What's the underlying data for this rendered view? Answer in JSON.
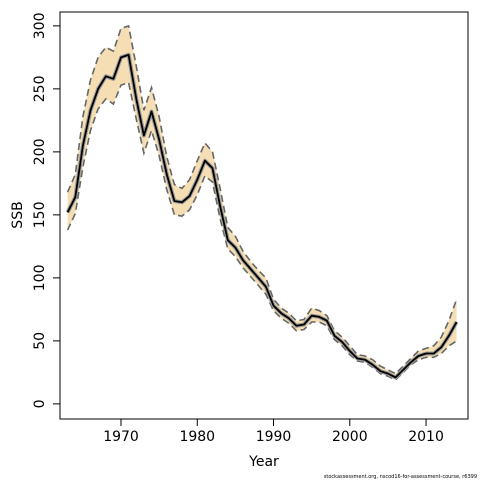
{
  "chart_data": {
    "type": "area",
    "xlabel": "Year",
    "ylabel": "SSB",
    "xlim": [
      1962,
      2015.5
    ],
    "ylim": [
      -12,
      311
    ],
    "x_ticks": [
      1970,
      1980,
      1990,
      2000,
      2010
    ],
    "y_ticks": [
      0,
      50,
      100,
      150,
      200,
      250,
      300
    ],
    "grid": false,
    "legend": "none",
    "caption": "stockassessment.org, nscod16-for-assessment-course, r6399",
    "colors": {
      "band": "#f5deb3",
      "estimate": "#000000",
      "bounds": "#666666"
    },
    "x": [
      1963,
      1964,
      1965,
      1966,
      1967,
      1968,
      1969,
      1970,
      1971,
      1972,
      1973,
      1974,
      1975,
      1976,
      1977,
      1978,
      1979,
      1980,
      1981,
      1982,
      1983,
      1984,
      1985,
      1986,
      1987,
      1988,
      1989,
      1990,
      1991,
      1992,
      1993,
      1994,
      1995,
      1996,
      1997,
      1998,
      1999,
      2000,
      2001,
      2002,
      2003,
      2004,
      2005,
      2006,
      2007,
      2008,
      2009,
      2010,
      2011,
      2012,
      2013,
      2014
    ],
    "series": [
      {
        "name": "",
        "role": "estimate",
        "values": [
          152,
          164,
          205,
          233,
          250,
          260,
          258,
          275,
          277,
          242,
          213,
          232,
          210,
          182,
          161,
          160,
          165,
          178,
          193,
          187,
          157,
          130,
          124,
          114,
          107,
          100,
          93,
          78,
          72,
          68,
          62,
          63,
          70,
          69,
          66,
          54,
          49,
          42,
          36,
          35,
          31,
          26,
          24,
          21,
          27,
          33,
          38,
          40,
          40,
          45,
          54,
          65
        ]
      },
      {
        "name": "",
        "role": "upper",
        "values": [
          168,
          182,
          228,
          257,
          275,
          283,
          280,
          298,
          300,
          268,
          233,
          251,
          228,
          196,
          174,
          171,
          178,
          193,
          207,
          200,
          171,
          140,
          133,
          121,
          113,
          106,
          100,
          83,
          76,
          72,
          66,
          67,
          76,
          74,
          70,
          58,
          53,
          46,
          39,
          38,
          35,
          30,
          27,
          24,
          30,
          36,
          42,
          44,
          46,
          53,
          66,
          83
        ]
      },
      {
        "name": "",
        "role": "lower",
        "values": [
          138,
          151,
          188,
          217,
          234,
          242,
          238,
          253,
          255,
          226,
          199,
          217,
          197,
          170,
          150,
          149,
          154,
          166,
          181,
          176,
          147,
          123,
          117,
          108,
          101,
          94,
          87,
          74,
          68,
          64,
          58,
          59,
          65,
          65,
          62,
          51,
          46,
          39,
          34,
          33,
          29,
          24,
          22,
          19,
          25,
          31,
          35,
          37,
          37,
          40,
          46,
          50
        ]
      }
    ]
  }
}
